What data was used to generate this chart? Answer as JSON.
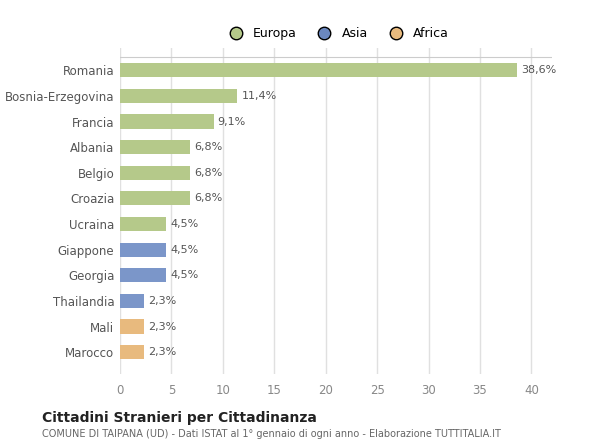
{
  "countries": [
    "Romania",
    "Bosnia-Erzegovina",
    "Francia",
    "Albania",
    "Belgio",
    "Croazia",
    "Ucraina",
    "Giappone",
    "Georgia",
    "Thailandia",
    "Mali",
    "Marocco"
  ],
  "values": [
    38.6,
    11.4,
    9.1,
    6.8,
    6.8,
    6.8,
    4.5,
    4.5,
    4.5,
    2.3,
    2.3,
    2.3
  ],
  "labels": [
    "38,6%",
    "11,4%",
    "9,1%",
    "6,8%",
    "6,8%",
    "6,8%",
    "4,5%",
    "4,5%",
    "4,5%",
    "2,3%",
    "2,3%",
    "2,3%"
  ],
  "colors": [
    "#b5c98a",
    "#b5c98a",
    "#b5c98a",
    "#b5c98a",
    "#b5c98a",
    "#b5c98a",
    "#b5c98a",
    "#7b96c9",
    "#7b96c9",
    "#7b96c9",
    "#e8ba7e",
    "#e8ba7e"
  ],
  "legend": [
    {
      "label": "Europa",
      "color": "#b5c98a"
    },
    {
      "label": "Asia",
      "color": "#6b88c0"
    },
    {
      "label": "Africa",
      "color": "#e8ba7e"
    }
  ],
  "title": "Cittadini Stranieri per Cittadinanza",
  "subtitle": "COMUNE DI TAIPANA (UD) - Dati ISTAT al 1° gennaio di ogni anno - Elaborazione TUTTITALIA.IT",
  "xlim": [
    0,
    42
  ],
  "xticks": [
    0,
    5,
    10,
    15,
    20,
    25,
    30,
    35,
    40
  ],
  "background_color": "#ffffff",
  "grid_color": "#e0e0e0",
  "figsize": [
    6.0,
    4.4
  ],
  "dpi": 100
}
